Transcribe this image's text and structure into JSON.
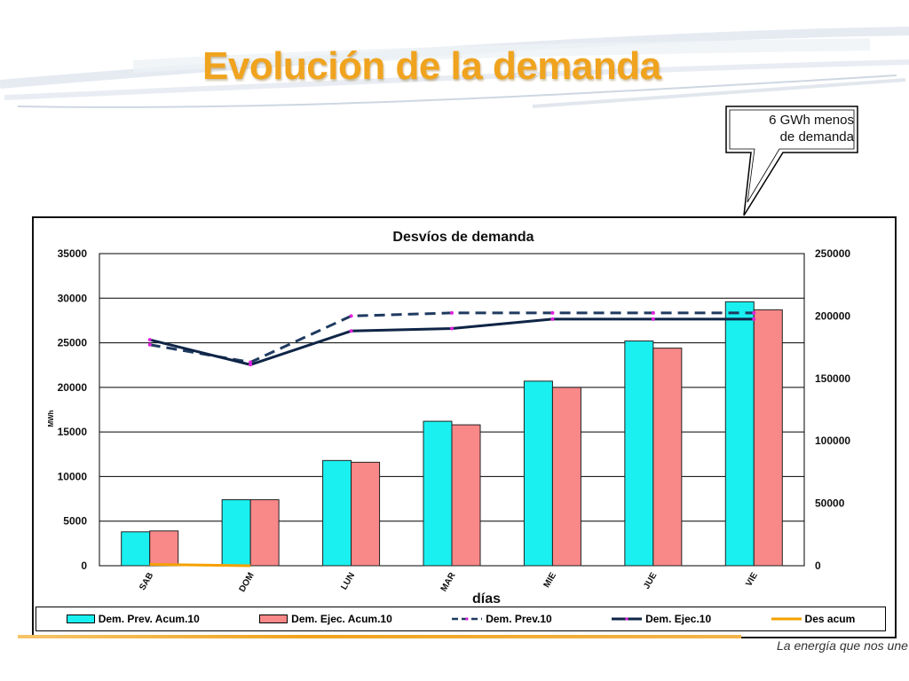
{
  "slide": {
    "title": "Evolución de la demanda",
    "callout": [
      "6 GWh menos",
      "de demanda"
    ],
    "tagline": "La energía que nos une"
  },
  "colors": {
    "title": "#f0a31e",
    "prev_bar": "#1af0f0",
    "ejec_bar": "#f98888",
    "prev_line": "#1f3a60",
    "ejec_line": "#0f2547",
    "ejec_marker": "#e020e0",
    "des_line": "#f5a000"
  },
  "chart_data": {
    "type": "bar",
    "title": "Desvíos de demanda",
    "xlabel": "días",
    "ylabel": "MWh",
    "ylim": [
      0,
      35000
    ],
    "yticks": [
      0,
      5000,
      10000,
      15000,
      20000,
      25000,
      30000,
      35000
    ],
    "y2lim": [
      0,
      250000
    ],
    "y2ticks": [
      0,
      50000,
      100000,
      150000,
      200000,
      250000
    ],
    "grid": true,
    "legend_position": "bottom",
    "categories": [
      "SAB",
      "DOM",
      "LUN",
      "MAR",
      "MIE",
      "JUE",
      "VIE"
    ],
    "series": [
      {
        "name": "Dem. Prev. Acum.10",
        "type": "bar",
        "axis": "left",
        "values": [
          3800,
          7400,
          11800,
          16200,
          20700,
          25200,
          29600
        ]
      },
      {
        "name": "Dem. Ejec. Acum.10",
        "type": "bar",
        "axis": "left",
        "values": [
          3900,
          7400,
          11600,
          15800,
          20000,
          24400,
          28700
        ]
      },
      {
        "name": "Dem. Prev.10",
        "type": "line",
        "axis": "right",
        "dashed": true,
        "values": [
          177000,
          163000,
          200000,
          202500,
          202500,
          202500,
          202500
        ]
      },
      {
        "name": "Dem. Ejec.10",
        "type": "line",
        "axis": "right",
        "dashed": false,
        "values": [
          181000,
          161000,
          188000,
          190000,
          197500,
          197500,
          197500
        ]
      },
      {
        "name": "Des acum",
        "type": "line",
        "axis": "left",
        "dashed": false,
        "values": [
          150,
          0,
          null,
          null,
          null,
          null,
          null
        ]
      }
    ]
  }
}
